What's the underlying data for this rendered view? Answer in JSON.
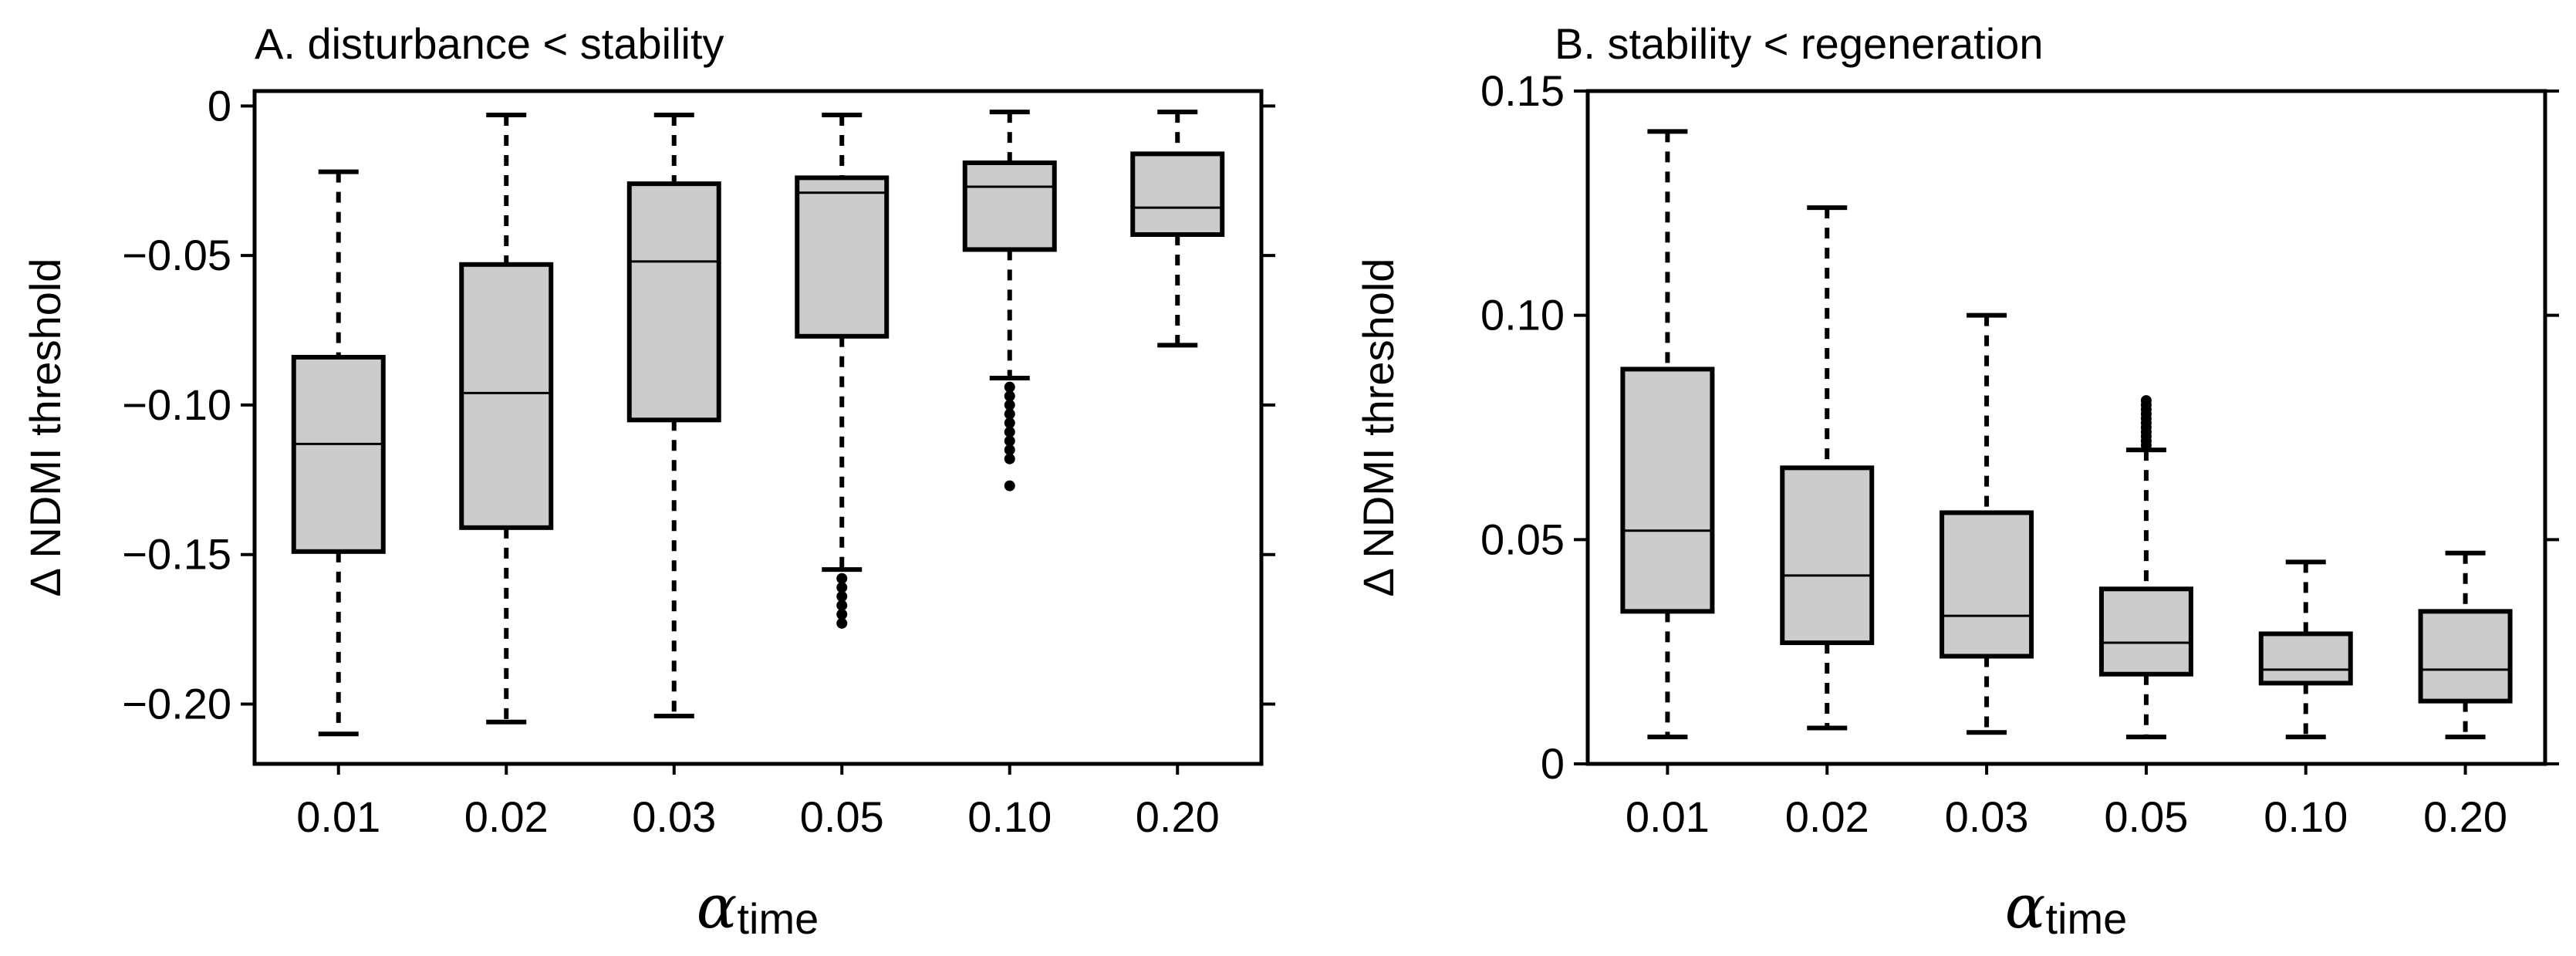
{
  "chart_data": [
    {
      "type": "boxplot",
      "title": "A. disturbance < stability",
      "ylabel": "Δ NDMI threshold",
      "xlabel": {
        "symbol": "α",
        "subscript": "time"
      },
      "ylim": [
        -0.22,
        0.005
      ],
      "yticks": [
        0,
        -0.05,
        -0.1,
        -0.15,
        -0.2
      ],
      "ytick_labels": [
        "0",
        "−0.05",
        "−0.10",
        "−0.15",
        "−0.20"
      ],
      "categories": [
        "0.01",
        "0.02",
        "0.03",
        "0.05",
        "0.10",
        "0.20"
      ],
      "box_fill": "#cccccc",
      "boxes": [
        {
          "whisker_low": -0.21,
          "q1": -0.149,
          "median": -0.113,
          "q3": -0.084,
          "whisker_high": -0.022,
          "outliers": []
        },
        {
          "whisker_low": -0.206,
          "q1": -0.141,
          "median": -0.096,
          "q3": -0.053,
          "whisker_high": -0.003,
          "outliers": []
        },
        {
          "whisker_low": -0.204,
          "q1": -0.105,
          "median": -0.052,
          "q3": -0.026,
          "whisker_high": -0.003,
          "outliers": []
        },
        {
          "whisker_low": -0.155,
          "q1": -0.077,
          "median": -0.029,
          "q3": -0.024,
          "whisker_high": -0.003,
          "outliers": [
            -0.158,
            -0.161,
            -0.164,
            -0.167,
            -0.17,
            -0.173
          ]
        },
        {
          "whisker_low": -0.091,
          "q1": -0.048,
          "median": -0.027,
          "q3": -0.019,
          "whisker_high": -0.002,
          "outliers": [
            -0.094,
            -0.097,
            -0.1,
            -0.103,
            -0.106,
            -0.109,
            -0.112,
            -0.115,
            -0.118,
            -0.127
          ]
        },
        {
          "whisker_low": -0.08,
          "q1": -0.043,
          "median": -0.034,
          "q3": -0.016,
          "whisker_high": -0.002,
          "outliers": []
        }
      ]
    },
    {
      "type": "boxplot",
      "title": "B. stability < regeneration",
      "ylabel": "Δ NDMI threshold",
      "xlabel": {
        "symbol": "α",
        "subscript": "time"
      },
      "ylim": [
        0,
        0.15
      ],
      "yticks": [
        0,
        0.05,
        0.1,
        0.15
      ],
      "ytick_labels": [
        "0",
        "0.05",
        "0.10",
        "0.15"
      ],
      "categories": [
        "0.01",
        "0.02",
        "0.03",
        "0.05",
        "0.10",
        "0.20"
      ],
      "box_fill": "#cccccc",
      "boxes": [
        {
          "whisker_low": 0.006,
          "q1": 0.034,
          "median": 0.052,
          "q3": 0.088,
          "whisker_high": 0.141,
          "outliers": []
        },
        {
          "whisker_low": 0.008,
          "q1": 0.027,
          "median": 0.042,
          "q3": 0.066,
          "whisker_high": 0.124,
          "outliers": []
        },
        {
          "whisker_low": 0.007,
          "q1": 0.024,
          "median": 0.033,
          "q3": 0.056,
          "whisker_high": 0.1,
          "outliers": []
        },
        {
          "whisker_low": 0.006,
          "q1": 0.02,
          "median": 0.027,
          "q3": 0.039,
          "whisker_high": 0.07,
          "outliers": [
            0.071,
            0.072,
            0.073,
            0.074,
            0.075,
            0.076,
            0.077,
            0.078,
            0.079,
            0.08,
            0.081
          ]
        },
        {
          "whisker_low": 0.006,
          "q1": 0.018,
          "median": 0.021,
          "q3": 0.029,
          "whisker_high": 0.045,
          "outliers": []
        },
        {
          "whisker_low": 0.006,
          "q1": 0.014,
          "median": 0.021,
          "q3": 0.034,
          "whisker_high": 0.047,
          "outliers": []
        }
      ]
    }
  ]
}
